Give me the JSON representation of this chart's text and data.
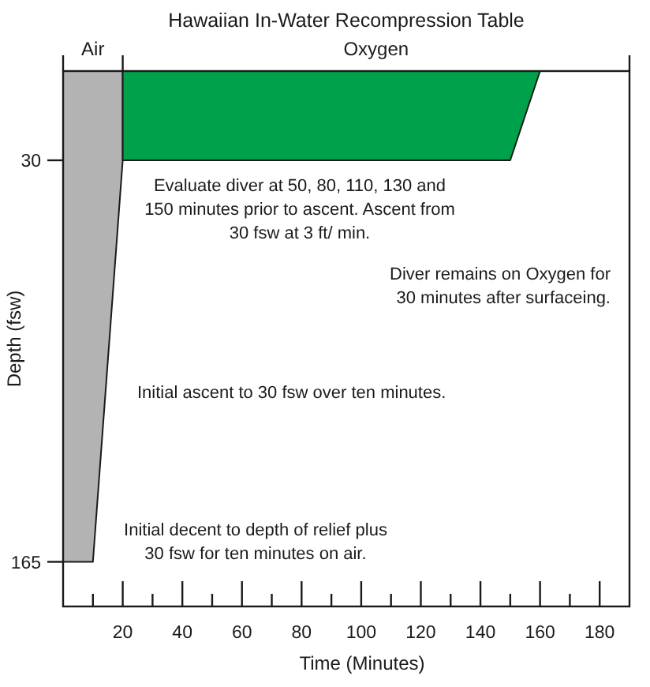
{
  "chart_data": {
    "type": "area",
    "title": "Hawaiian In-Water Recompression Table",
    "xlabel": "Time (Minutes)",
    "ylabel": "Depth (fsw)",
    "xlim": [
      0,
      190
    ],
    "ylim": [
      180,
      0
    ],
    "xticks": [
      {
        "value": 10,
        "label": null
      },
      20,
      {
        "value": 30,
        "label": null
      },
      40,
      {
        "value": 50,
        "label": null
      },
      60,
      {
        "value": 70,
        "label": null
      },
      80,
      {
        "value": 90,
        "label": null
      },
      100,
      {
        "value": 110,
        "label": null
      },
      120,
      {
        "value": 130,
        "label": null
      },
      140,
      {
        "value": 150,
        "label": null
      },
      160,
      {
        "value": 170,
        "label": null
      },
      180
    ],
    "yticks": [
      30,
      165
    ],
    "series": [
      {
        "name": "Air",
        "color": "#b3b3b3",
        "x": [
          0,
          10,
          20,
          20
        ],
        "values": [
          165,
          165,
          30,
          0
        ]
      },
      {
        "name": "Oxygen",
        "color": "#00a14b",
        "x": [
          20,
          150,
          160
        ],
        "values": [
          30,
          30,
          0
        ]
      }
    ],
    "annotations": [
      "Evaluate diver at 50, 80, 110, 130 and\n150 minutes prior to ascent. Ascent from\n30 fsw at 3 ft/ min.",
      "Diver remains on Oxygen for\n30 minutes after surfaceing.",
      "Initial ascent to 30 fsw over ten minutes.",
      "Initial decent to depth of relief plus\n30 fsw for ten minutes on air."
    ]
  }
}
